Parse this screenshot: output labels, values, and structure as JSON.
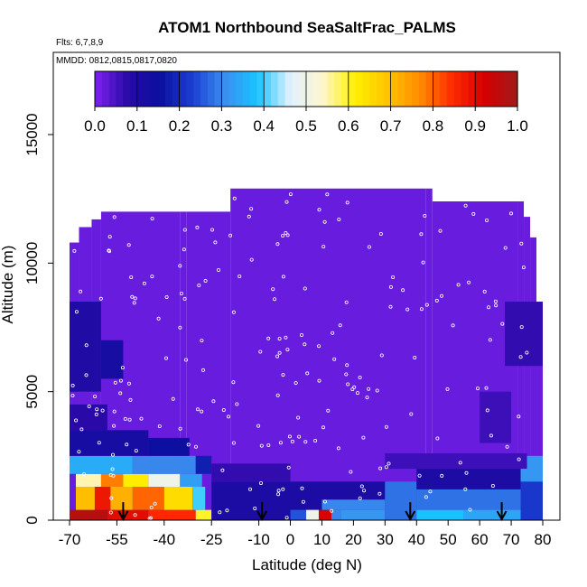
{
  "chart_data": {
    "type": "heatmap",
    "title": "ATOM1 Northbound SeaSaltFrac_PALMS",
    "subtitle_flights": "Flts: 6,7,8,9",
    "subtitle_dates": "MMDD: 0812,0815,0817,0820",
    "xlabel": "Latitude (deg N)",
    "ylabel": "Altitude (m)",
    "xlim": [
      -70,
      82
    ],
    "ylim": [
      0,
      17500
    ],
    "x_ticks": [
      {
        "value": -70,
        "label": "-70"
      },
      {
        "value": -55,
        "label": "-55"
      },
      {
        "value": -40,
        "label": "-40"
      },
      {
        "value": -25,
        "label": "-25"
      },
      {
        "value": -10,
        "label": "-10"
      },
      {
        "value": 0,
        "label": "0"
      },
      {
        "value": 10,
        "label": "10"
      },
      {
        "value": 20,
        "label": "20"
      },
      {
        "value": 30,
        "label": "30"
      },
      {
        "value": 40,
        "label": "40"
      },
      {
        "value": 50,
        "label": "50"
      },
      {
        "value": 60,
        "label": "60"
      },
      {
        "value": 70,
        "label": "70"
      },
      {
        "value": 80,
        "label": "80"
      }
    ],
    "y_ticks": [
      {
        "value": 0,
        "label": "0"
      },
      {
        "value": 5000,
        "label": "5000"
      },
      {
        "value": 10000,
        "label": "10000"
      },
      {
        "value": 15000,
        "label": "15000"
      }
    ],
    "colorbar": {
      "range": [
        0,
        1
      ],
      "tick_labels": [
        "0.0",
        "0.1",
        "0.2",
        "0.3",
        "0.4",
        "0.5",
        "0.6",
        "0.7",
        "0.8",
        "0.9",
        "1.0"
      ],
      "colors": [
        "#7e22f0",
        "#2a0aa8",
        "#0a0f9e",
        "#1b3fd2",
        "#3b8ff0",
        "#18c4ff",
        "#dff1ff",
        "#fff6d0",
        "#fff000",
        "#ffc400",
        "#ff8c00",
        "#ff2a00",
        "#d40000",
        "#a01a1a"
      ]
    },
    "arrows_latitude": [
      -53,
      -9,
      38,
      67
    ],
    "background_value": 0.02,
    "coverage_envelope": [
      {
        "lat": -70,
        "alt_top": 10800
      },
      {
        "lat": -67,
        "alt_top": 11400
      },
      {
        "lat": -63,
        "alt_top": 11700
      },
      {
        "lat": -60,
        "alt_top": 12000
      },
      {
        "lat": -35,
        "alt_top": 12000
      },
      {
        "lat": -33,
        "alt_top": 12000
      },
      {
        "lat": -19,
        "alt_top": 12900
      },
      {
        "lat": 43,
        "alt_top": 12900
      },
      {
        "lat": 45,
        "alt_top": 12400
      },
      {
        "lat": 72,
        "alt_top": 12400
      },
      {
        "lat": 74,
        "alt_top": 11800
      },
      {
        "lat": 76,
        "alt_top": 11000
      },
      {
        "lat": 78,
        "alt_top": 6400
      },
      {
        "lat": 80,
        "alt_top": 6400
      }
    ],
    "features": [
      {
        "lat": [
          -70,
          -58
        ],
        "alt": [
          0,
          400
        ],
        "value": 0.97
      },
      {
        "lat": [
          -58,
          -45
        ],
        "alt": [
          0,
          400
        ],
        "value": 0.9
      },
      {
        "lat": [
          -45,
          -30
        ],
        "alt": [
          0,
          400
        ],
        "value": 0.85
      },
      {
        "lat": [
          -30,
          -25
        ],
        "alt": [
          0,
          400
        ],
        "value": 0.6
      },
      {
        "lat": [
          -68,
          -62
        ],
        "alt": [
          400,
          1300
        ],
        "value": 0.7
      },
      {
        "lat": [
          -62,
          -57
        ],
        "alt": [
          400,
          1300
        ],
        "value": 0.88
      },
      {
        "lat": [
          -57,
          -50
        ],
        "alt": [
          400,
          1300
        ],
        "value": 0.72
      },
      {
        "lat": [
          -50,
          -40
        ],
        "alt": [
          400,
          1300
        ],
        "value": 0.8
      },
      {
        "lat": [
          -40,
          -31
        ],
        "alt": [
          400,
          1300
        ],
        "value": 0.65
      },
      {
        "lat": [
          -31,
          -27
        ],
        "alt": [
          400,
          1300
        ],
        "value": 0.4
      },
      {
        "lat": [
          -68,
          -60
        ],
        "alt": [
          1300,
          1800
        ],
        "value": 0.55
      },
      {
        "lat": [
          -60,
          -53
        ],
        "alt": [
          1300,
          1800
        ],
        "value": 0.78
      },
      {
        "lat": [
          -53,
          -45
        ],
        "alt": [
          1300,
          1800
        ],
        "value": 0.62
      },
      {
        "lat": [
          -45,
          -35
        ],
        "alt": [
          1300,
          1800
        ],
        "value": 0.5
      },
      {
        "lat": [
          -35,
          -28
        ],
        "alt": [
          1300,
          1800
        ],
        "value": 0.33
      },
      {
        "lat": [
          -70,
          -50
        ],
        "alt": [
          1800,
          2500
        ],
        "value": 0.35
      },
      {
        "lat": [
          -50,
          -30
        ],
        "alt": [
          1800,
          2500
        ],
        "value": 0.3
      },
      {
        "lat": [
          -30,
          -25
        ],
        "alt": [
          1800,
          2500
        ],
        "value": 0.18
      },
      {
        "lat": [
          -70,
          -45
        ],
        "alt": [
          2500,
          3500
        ],
        "value": 0.12
      },
      {
        "lat": [
          -45,
          -32
        ],
        "alt": [
          2500,
          3200
        ],
        "value": 0.15
      },
      {
        "lat": [
          -70,
          -58
        ],
        "alt": [
          3500,
          4500
        ],
        "value": 0.08
      },
      {
        "lat": [
          -70,
          -60
        ],
        "alt": [
          5000,
          8500
        ],
        "value": 0.1
      },
      {
        "lat": [
          -60,
          -53
        ],
        "alt": [
          5500,
          7000
        ],
        "value": 0.12
      },
      {
        "lat": [
          -25,
          30
        ],
        "alt": [
          0,
          1500
        ],
        "value": 0.11
      },
      {
        "lat": [
          -25,
          0
        ],
        "alt": [
          1500,
          2200
        ],
        "value": 0.07
      },
      {
        "lat": [
          0,
          5
        ],
        "alt": [
          0,
          400
        ],
        "value": 0.25
      },
      {
        "lat": [
          5,
          9
        ],
        "alt": [
          0,
          400
        ],
        "value": 0.5
      },
      {
        "lat": [
          9,
          13
        ],
        "alt": [
          0,
          400
        ],
        "value": 0.92
      },
      {
        "lat": [
          13,
          16
        ],
        "alt": [
          0,
          400
        ],
        "value": 0.3
      },
      {
        "lat": [
          16,
          30
        ],
        "alt": [
          0,
          400
        ],
        "value": 0.32
      },
      {
        "lat": [
          10,
          30
        ],
        "alt": [
          400,
          800
        ],
        "value": 0.3
      },
      {
        "lat": [
          30,
          40
        ],
        "alt": [
          0,
          1500
        ],
        "value": 0.28
      },
      {
        "lat": [
          40,
          55
        ],
        "alt": [
          0,
          400
        ],
        "value": 0.38
      },
      {
        "lat": [
          40,
          75
        ],
        "alt": [
          400,
          1200
        ],
        "value": 0.28
      },
      {
        "lat": [
          55,
          75
        ],
        "alt": [
          0,
          400
        ],
        "value": 0.34
      },
      {
        "lat": [
          40,
          73
        ],
        "alt": [
          1200,
          2000
        ],
        "value": 0.11
      },
      {
        "lat": [
          73,
          80
        ],
        "alt": [
          0,
          1500
        ],
        "value": 0.22
      },
      {
        "lat": [
          73,
          80
        ],
        "alt": [
          1500,
          2500
        ],
        "value": 0.32
      },
      {
        "lat": [
          30,
          75
        ],
        "alt": [
          2000,
          2600
        ],
        "value": 0.06
      },
      {
        "lat": [
          68,
          80
        ],
        "alt": [
          6000,
          8500
        ],
        "value": 0.07
      },
      {
        "lat": [
          60,
          70
        ],
        "alt": [
          3000,
          5000
        ],
        "value": 0.06
      }
    ]
  }
}
